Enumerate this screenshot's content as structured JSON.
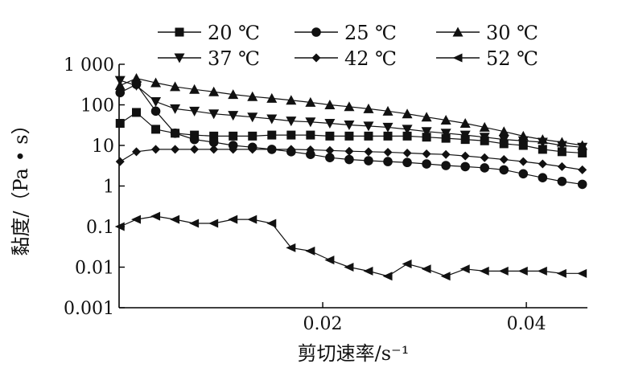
{
  "chart_data": {
    "type": "line",
    "title": "",
    "xlabel": "剪切速率/s⁻¹",
    "ylabel": "黏度/（Pa • s）",
    "y_scale": "log",
    "xlim": [
      0,
      0.046
    ],
    "ylim": [
      0.001,
      1000
    ],
    "x_ticks": [
      0.02,
      0.04
    ],
    "x_tick_labels": [
      "0.02",
      "0.04"
    ],
    "y_ticks": [
      0.001,
      0.01,
      0.1,
      1,
      10,
      100,
      1000
    ],
    "y_tick_labels": [
      "0.001",
      "0.01",
      "0.1",
      "1",
      "10",
      "100",
      "1 000"
    ],
    "legend_position": "top",
    "grid": false,
    "x": [
      0.0001,
      0.0017,
      0.0036,
      0.0055,
      0.0074,
      0.0093,
      0.0112,
      0.0131,
      0.015,
      0.0169,
      0.0188,
      0.0207,
      0.0226,
      0.0245,
      0.0264,
      0.0283,
      0.0302,
      0.0321,
      0.034,
      0.0359,
      0.0378,
      0.0397,
      0.0416,
      0.0435,
      0.0455
    ],
    "series": [
      {
        "name": "20 ℃",
        "marker": "square",
        "values": [
          35,
          65,
          25,
          20,
          18,
          17,
          17,
          17,
          18,
          18,
          18,
          17,
          17,
          17,
          17,
          17,
          16,
          15,
          14,
          13,
          11,
          10,
          8,
          7,
          6.5
        ]
      },
      {
        "name": "25 ℃",
        "marker": "circle",
        "values": [
          200,
          320,
          70,
          20,
          14,
          12,
          10,
          9,
          8,
          7,
          6,
          5,
          4.5,
          4.2,
          4,
          3.8,
          3.5,
          3.2,
          3,
          2.8,
          2.5,
          2,
          1.6,
          1.3,
          1.1
        ]
      },
      {
        "name": "30 ℃",
        "marker": "triangle-up",
        "values": [
          300,
          450,
          350,
          280,
          240,
          210,
          180,
          160,
          145,
          130,
          115,
          100,
          90,
          80,
          70,
          60,
          50,
          42,
          35,
          28,
          22,
          17,
          14,
          12,
          10
        ]
      },
      {
        "name": "37 ℃",
        "marker": "triangle-down",
        "values": [
          400,
          300,
          120,
          80,
          70,
          60,
          55,
          50,
          45,
          40,
          38,
          35,
          32,
          30,
          28,
          25,
          22,
          20,
          18,
          16,
          14,
          13,
          12,
          10,
          9
        ]
      },
      {
        "name": "42 ℃",
        "marker": "diamond",
        "values": [
          4,
          7,
          8,
          8,
          8,
          8,
          8,
          8,
          8,
          8,
          7.8,
          7.5,
          7.2,
          7,
          6.8,
          6.5,
          6.2,
          6,
          5.5,
          5,
          4.5,
          4,
          3.5,
          3,
          2.5
        ]
      },
      {
        "name": "52 ℃",
        "marker": "triangle-left",
        "values": [
          0.1,
          0.15,
          0.18,
          0.15,
          0.12,
          0.12,
          0.15,
          0.15,
          0.12,
          0.03,
          0.025,
          0.015,
          0.01,
          0.008,
          0.006,
          0.012,
          0.009,
          0.006,
          0.009,
          0.008,
          0.008,
          0.008,
          0.008,
          0.007,
          0.007
        ]
      }
    ]
  }
}
